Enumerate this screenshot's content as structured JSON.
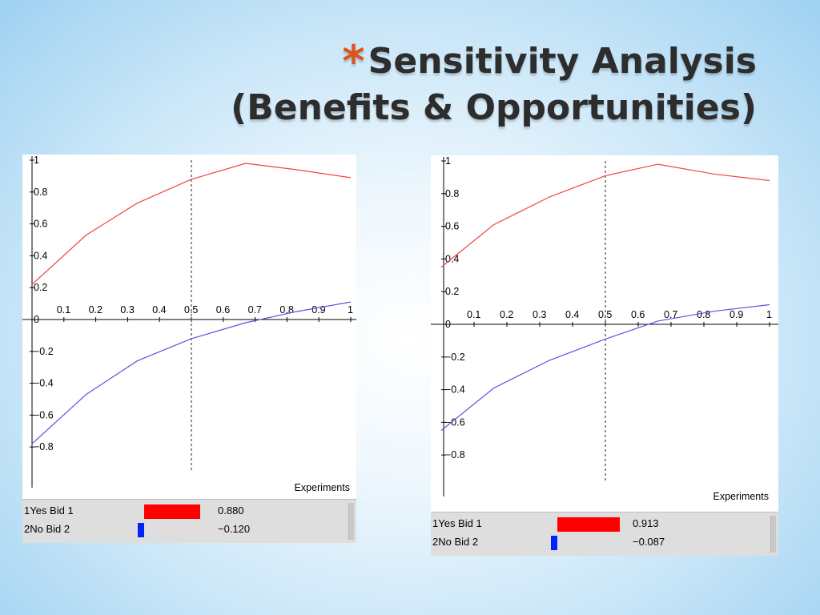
{
  "title": {
    "bullet": "*",
    "line1": "Sensitivity Analysis",
    "line2": "(Benefits & Opportunities)"
  },
  "colors": {
    "yes_series": "#ef4444",
    "no_series": "#5555e0",
    "yes_bar": "#ff0000",
    "no_bar": "#0022ff",
    "bullet": "#d9561f"
  },
  "chart_data": [
    {
      "type": "line",
      "xlabel": "Experiments",
      "xlim": [
        0,
        1
      ],
      "ylim": [
        -1,
        1
      ],
      "x_ticks": [
        "0.1",
        "0.2",
        "0.3",
        "0.4",
        "0.5",
        "0.6",
        "0.7",
        "0.8",
        "0.9",
        "1"
      ],
      "y_ticks": [
        "1",
        "0.8",
        "0.6",
        "0.4",
        "0.2",
        "0",
        "-0.2",
        "-0.4",
        "-0.6",
        "-0.8"
      ],
      "marker_x": 0.5,
      "series": [
        {
          "name": "Yes Bid",
          "x": [
            0,
            0.17,
            0.33,
            0.5,
            0.67,
            0.83,
            1.0
          ],
          "values": [
            0.22,
            0.53,
            0.73,
            0.88,
            0.98,
            0.94,
            0.89
          ]
        },
        {
          "name": "No Bid",
          "x": [
            0,
            0.17,
            0.33,
            0.5,
            0.67,
            0.83,
            1.0
          ],
          "values": [
            -0.78,
            -0.47,
            -0.26,
            -0.12,
            -0.02,
            0.05,
            0.11
          ]
        }
      ],
      "results": [
        {
          "label": "1Yes Bid  1",
          "value": 0.88,
          "value_text": "0.880"
        },
        {
          "label": "2No Bid  2",
          "value": -0.12,
          "value_text": "−0.120"
        }
      ]
    },
    {
      "type": "line",
      "xlabel": "Experiments",
      "xlim": [
        0,
        1
      ],
      "ylim": [
        -1,
        1
      ],
      "x_ticks": [
        "0.1",
        "0.2",
        "0.3",
        "0.4",
        "0.5",
        "0.6",
        "0.7",
        "0.8",
        "0.9",
        "1"
      ],
      "y_ticks": [
        "1",
        "0.8",
        "0.6",
        "0.4",
        "0.2",
        "0",
        "-0.2",
        "-0.4",
        "-0.6",
        "-0.8"
      ],
      "marker_x": 0.5,
      "series": [
        {
          "name": "Yes Bid",
          "x": [
            0,
            0.16,
            0.33,
            0.5,
            0.66,
            0.83,
            1.0
          ],
          "values": [
            0.35,
            0.61,
            0.78,
            0.91,
            0.98,
            0.92,
            0.88
          ]
        },
        {
          "name": "No Bid",
          "x": [
            0,
            0.16,
            0.33,
            0.5,
            0.66,
            0.83,
            1.0
          ],
          "values": [
            -0.65,
            -0.39,
            -0.22,
            -0.09,
            0.02,
            0.08,
            0.12
          ]
        }
      ],
      "results": [
        {
          "label": "1Yes Bid  1",
          "value": 0.913,
          "value_text": "0.913"
        },
        {
          "label": "2No Bid  2",
          "value": -0.087,
          "value_text": "−0.087"
        }
      ]
    }
  ]
}
